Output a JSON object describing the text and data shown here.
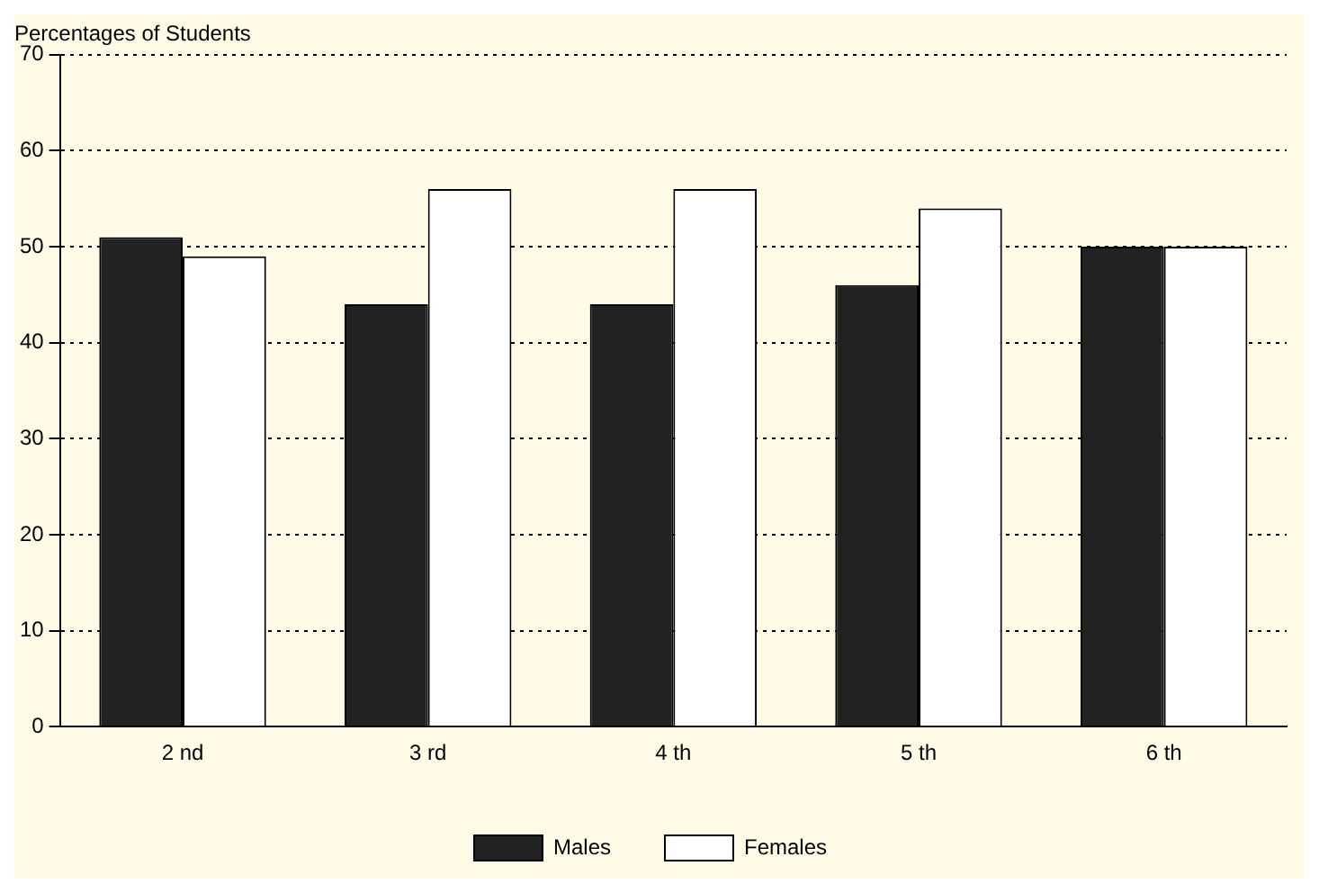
{
  "chart_data": {
    "type": "bar",
    "title": "Percentages of Students",
    "categories": [
      "2 nd",
      "3 rd",
      "4 th",
      "5 th",
      "6 th"
    ],
    "series": [
      {
        "name": "Males",
        "color": "#222222",
        "values": [
          51,
          44,
          44,
          46,
          50
        ]
      },
      {
        "name": "Females",
        "color": "#ffffff",
        "values": [
          49,
          56,
          56,
          54,
          50
        ]
      }
    ],
    "ylim": [
      0,
      70
    ],
    "yticks": [
      0,
      10,
      20,
      30,
      40,
      50,
      60,
      70
    ],
    "grid": "y",
    "legend": "bottom"
  }
}
